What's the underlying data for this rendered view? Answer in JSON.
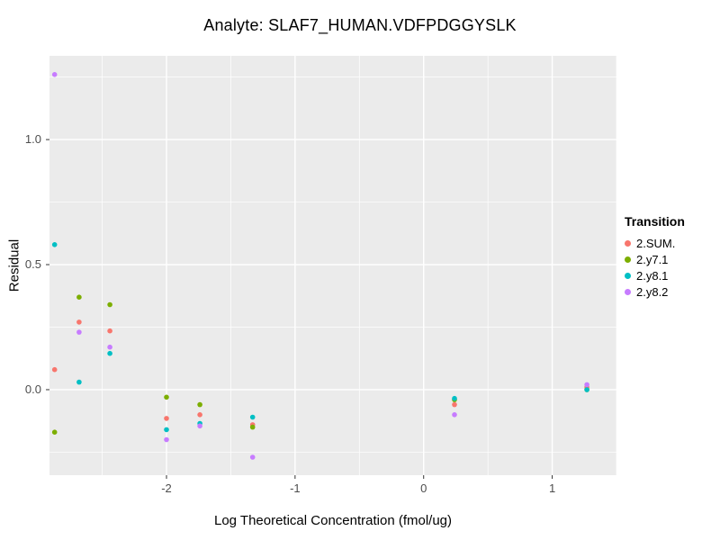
{
  "chart_data": {
    "type": "scatter",
    "title": "Analyte: SLAF7_HUMAN.VDFPDGGYSLK",
    "xlabel": "Log Theoretical Concentration (fmol/ug)",
    "ylabel": "Residual",
    "xlim": [
      -2.91,
      1.5
    ],
    "ylim": [
      -0.342,
      1.335
    ],
    "grid": true,
    "panel_bg": "#EBEBEB",
    "grid_color": "#FFFFFF",
    "tick_color": "#333333",
    "x_ticks": [
      -2,
      -1,
      0,
      1
    ],
    "x_tick_labels": [
      "-2",
      "-1",
      "0",
      "1"
    ],
    "x_minor_ticks": [
      -2.5,
      -1.5,
      -0.5,
      0.5,
      1.5
    ],
    "y_ticks": [
      0.0,
      0.5,
      1.0
    ],
    "y_tick_labels": [
      "0.0",
      "0.5",
      "1.0"
    ],
    "y_minor_ticks": [
      -0.25,
      0.25,
      0.75,
      1.25
    ],
    "legend_title": "Transition",
    "legend_position": "right",
    "series": [
      {
        "name": "2.SUM.",
        "color": "#F8766D",
        "points": [
          [
            -2.87,
            0.08
          ],
          [
            -2.68,
            0.27
          ],
          [
            -2.44,
            0.235
          ],
          [
            -2.0,
            -0.115
          ],
          [
            -1.74,
            -0.1
          ],
          [
            -1.33,
            -0.14
          ],
          [
            0.24,
            -0.06
          ],
          [
            1.27,
            0.01
          ]
        ]
      },
      {
        "name": "2.y7.1",
        "color": "#7CAE00",
        "points": [
          [
            -2.87,
            -0.17
          ],
          [
            -2.68,
            0.37
          ],
          [
            -2.44,
            0.34
          ],
          [
            -2.0,
            -0.03
          ],
          [
            -1.74,
            -0.06
          ],
          [
            -1.33,
            -0.15
          ],
          [
            0.24,
            -0.04
          ],
          [
            1.27,
            0.0
          ]
        ]
      },
      {
        "name": "2.y8.1",
        "color": "#00BFC4",
        "points": [
          [
            -2.87,
            0.58
          ],
          [
            -2.68,
            0.03
          ],
          [
            -2.44,
            0.145
          ],
          [
            -2.0,
            -0.16
          ],
          [
            -1.74,
            -0.135
          ],
          [
            -1.33,
            -0.11
          ],
          [
            0.24,
            -0.035
          ],
          [
            1.27,
            0.0
          ]
        ]
      },
      {
        "name": "2.y8.2",
        "color": "#C77CFF",
        "points": [
          [
            -2.87,
            1.26
          ],
          [
            -2.68,
            0.23
          ],
          [
            -2.44,
            0.17
          ],
          [
            -2.0,
            -0.2
          ],
          [
            -1.74,
            -0.145
          ],
          [
            -1.33,
            -0.27
          ],
          [
            0.24,
            -0.1
          ],
          [
            1.27,
            0.02
          ]
        ]
      }
    ]
  }
}
